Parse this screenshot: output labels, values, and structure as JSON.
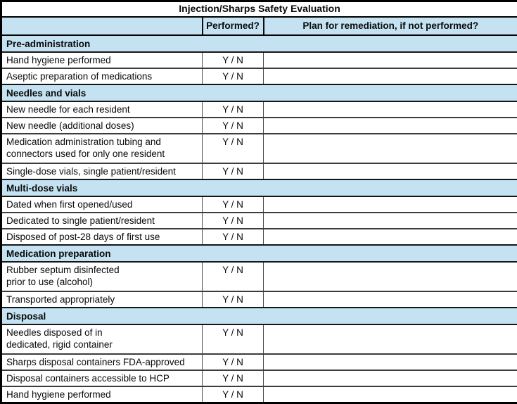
{
  "title": "Injection/Sharps Safety Evaluation",
  "columns": {
    "performed": "Performed?",
    "remediation": "Plan for remediation, if not performed?"
  },
  "colors": {
    "section_header_bg": "#c4e2f1",
    "outer_border": "#000000",
    "text": "#0a0a0a"
  },
  "sections": [
    {
      "name": "Pre-administration",
      "rows": [
        {
          "label": "Hand hygiene performed",
          "performed": "Y / N",
          "remediation": ""
        },
        {
          "label": "Aseptic preparation of medications",
          "performed": "Y / N",
          "remediation": ""
        }
      ]
    },
    {
      "name": "Needles and vials",
      "rows": [
        {
          "label": "New needle for each resident",
          "performed": "Y / N",
          "remediation": ""
        },
        {
          "label": "New needle (additional doses)",
          "performed": "Y / N",
          "remediation": ""
        },
        {
          "label": "Medication administration tubing and\nconnectors used for only one resident",
          "performed": "Y / N",
          "remediation": ""
        },
        {
          "label": "Single-dose vials, single patient/resident",
          "performed": "Y / N",
          "remediation": ""
        }
      ]
    },
    {
      "name": "Multi-dose vials",
      "rows": [
        {
          "label": "Dated when first opened/used",
          "performed": "Y / N",
          "remediation": ""
        },
        {
          "label": "Dedicated to single patient/resident",
          "performed": "Y / N",
          "remediation": ""
        },
        {
          "label": "Disposed of post-28 days of first use",
          "performed": "Y / N",
          "remediation": ""
        }
      ]
    },
    {
      "name": "Medication preparation",
      "rows": [
        {
          "label": "Rubber septum disinfected\nprior to use (alcohol)",
          "performed": "Y / N",
          "remediation": ""
        },
        {
          "label": "Transported appropriately",
          "performed": "Y / N",
          "remediation": ""
        }
      ]
    },
    {
      "name": "Disposal",
      "rows": [
        {
          "label": "Needles disposed of in\ndedicated, rigid container",
          "performed": "Y / N",
          "remediation": ""
        },
        {
          "label": "Sharps disposal containers FDA-approved",
          "performed": "Y / N",
          "remediation": ""
        },
        {
          "label": "Disposal containers accessible to HCP",
          "performed": "Y / N",
          "remediation": ""
        },
        {
          "label": "Hand hygiene performed",
          "performed": "Y / N",
          "remediation": ""
        }
      ]
    }
  ]
}
